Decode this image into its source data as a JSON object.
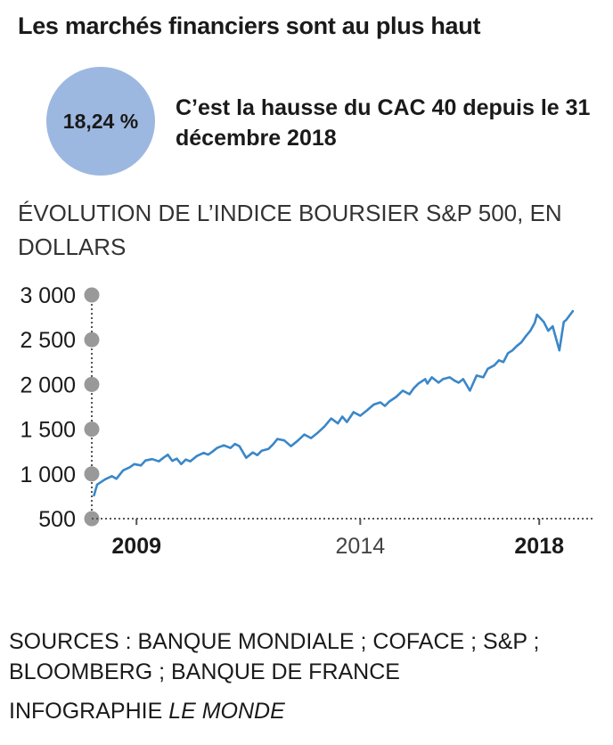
{
  "header": {
    "title": "Les marchés financiers sont au plus haut",
    "bubble_value": "18,24 %",
    "headline": "C’est la hausse du CAC 40 depuis le 31 décembre 2018"
  },
  "colors": {
    "bubble": "#9db8e0",
    "line": "#3a87c8",
    "tick_dot": "#999999"
  },
  "chart_data": {
    "type": "line",
    "title": "ÉVOLUTION DE L’INDICE BOURSIER S&P 500, EN DOLLARS",
    "xlabel": "",
    "ylabel": "",
    "ylim": [
      500,
      3000
    ],
    "xlim": [
      2008.0,
      2019.25
    ],
    "yticks": [
      {
        "value": 3000,
        "label": "3 000"
      },
      {
        "value": 2500,
        "label": "2 500"
      },
      {
        "value": 2000,
        "label": "2 000"
      },
      {
        "value": 1500,
        "label": "1 500"
      },
      {
        "value": 1000,
        "label": "1 000"
      },
      {
        "value": 500,
        "label": "500"
      }
    ],
    "xticks": [
      {
        "value": 2009,
        "label": "2009",
        "bold": true
      },
      {
        "value": 2014,
        "label": "2014",
        "bold": false
      },
      {
        "value": 2018,
        "label": "2018",
        "bold": true
      }
    ],
    "grid": false,
    "series": [
      {
        "name": "",
        "x": [
          2008.05,
          2008.12,
          2008.3,
          2008.45,
          2008.55,
          2008.7,
          2008.85,
          2008.95,
          2009.1,
          2009.2,
          2009.35,
          2009.5,
          2009.6,
          2009.7,
          2009.8,
          2009.9,
          2010.0,
          2010.1,
          2010.2,
          2010.35,
          2010.5,
          2010.6,
          2010.7,
          2010.8,
          2010.95,
          2011.1,
          2011.2,
          2011.3,
          2011.45,
          2011.6,
          2011.7,
          2011.8,
          2011.95,
          2012.05,
          2012.15,
          2012.3,
          2012.45,
          2012.6,
          2012.75,
          2012.9,
          2013.05,
          2013.2,
          2013.35,
          2013.5,
          2013.6,
          2013.7,
          2013.85,
          2014.0,
          2014.15,
          2014.3,
          2014.45,
          2014.55,
          2014.65,
          2014.8,
          2014.95,
          2015.1,
          2015.2,
          2015.3,
          2015.45,
          2015.5,
          2015.6,
          2015.75,
          2015.85,
          2016.0,
          2016.1,
          2016.2,
          2016.3,
          2016.45,
          2016.6,
          2016.75,
          2016.85,
          2017.0,
          2017.1,
          2017.2,
          2017.3,
          2017.4,
          2017.5,
          2017.6,
          2017.7,
          2017.8,
          2017.9,
          2017.95,
          2018.1,
          2018.2,
          2018.3,
          2018.45,
          2018.55,
          2018.6,
          2018.75
        ],
        "values": [
          760,
          880,
          940,
          975,
          945,
          1040,
          1075,
          1110,
          1095,
          1150,
          1165,
          1140,
          1180,
          1215,
          1145,
          1170,
          1110,
          1160,
          1140,
          1200,
          1235,
          1215,
          1250,
          1290,
          1320,
          1290,
          1335,
          1310,
          1180,
          1240,
          1210,
          1260,
          1280,
          1330,
          1390,
          1375,
          1310,
          1370,
          1440,
          1400,
          1460,
          1530,
          1620,
          1565,
          1640,
          1580,
          1690,
          1650,
          1710,
          1775,
          1800,
          1760,
          1810,
          1860,
          1930,
          1890,
          1960,
          2010,
          2060,
          2010,
          2080,
          2020,
          2060,
          2080,
          2045,
          2020,
          2060,
          1930,
          2100,
          2080,
          2175,
          2215,
          2270,
          2250,
          2350,
          2380,
          2430,
          2470,
          2540,
          2600,
          2690,
          2780,
          2700,
          2600,
          2650,
          2380,
          2700,
          2720,
          2820
        ]
      }
    ]
  },
  "footer": {
    "sources": "SOURCES : BANQUE MONDIALE ; COFACE ; S&P ; BLOOMBERG ; BANQUE DE FRANCE",
    "credit_prefix": "INFOGRAPHIE ",
    "credit_brand": "LE MONDE"
  }
}
